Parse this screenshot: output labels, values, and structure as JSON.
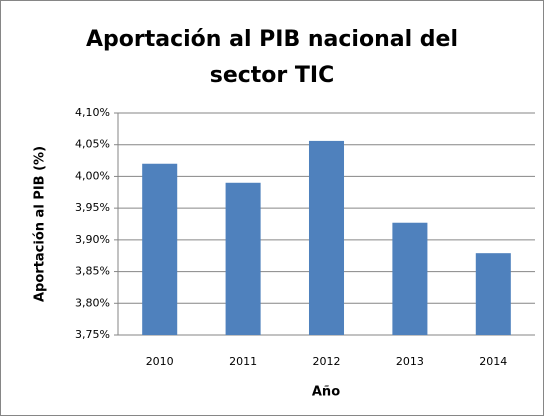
{
  "chart_data": {
    "type": "bar",
    "title": "Aportación al PIB nacional del sector TIC",
    "x_label": "Año",
    "y_label": "Aportación al PIB (%)",
    "categories": [
      "2010",
      "2011",
      "2012",
      "2013",
      "2014"
    ],
    "values": [
      4.02,
      3.99,
      4.056,
      3.927,
      3.879
    ],
    "color": "#4f81bd",
    "ylim": [
      3.75,
      4.1
    ],
    "yticks": [
      {
        "value": 3.75,
        "label": "3,75%"
      },
      {
        "value": 3.8,
        "label": "3,80%"
      },
      {
        "value": 3.85,
        "label": "3,85%"
      },
      {
        "value": 3.9,
        "label": "3,90%"
      },
      {
        "value": 3.95,
        "label": "3,95%"
      },
      {
        "value": 4.0,
        "label": "4,00%"
      },
      {
        "value": 4.05,
        "label": "4,05%"
      },
      {
        "value": 4.1,
        "label": "4,10%"
      }
    ],
    "grid": true
  }
}
